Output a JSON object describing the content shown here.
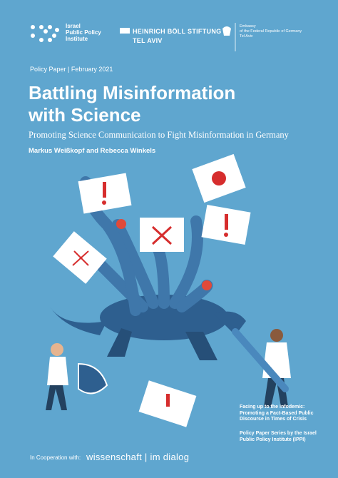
{
  "logos": {
    "ippi": [
      "Israel",
      "Public Policy",
      "Institute"
    ],
    "boell": {
      "name": "HEINRICH BÖLL STIFTUNG",
      "office": "TEL AVIV"
    },
    "embassy": [
      "Embassy",
      "of the Federal Republic of Germany",
      "Tel Aviv"
    ]
  },
  "header": {
    "kicker": "Policy Paper | February 2021",
    "title": [
      "Battling Misinformation",
      "with Science"
    ],
    "subtitle": "Promoting Science Communication to Fight Misinformation in Germany",
    "authors": "Markus Weißkopf and Rebecca Winkels"
  },
  "side_notes": {
    "series_title": [
      "Facing up to the Infodemic:",
      "Promoting a Fact-Based Public",
      "Discourse in Times of Crisis"
    ],
    "series_by": [
      "Policy Paper Series by the Israel",
      "Public Policy Institute (IPPI)"
    ]
  },
  "footer": {
    "cooperation": "In Cooperation with:",
    "partner": "wissenschaft | im dialog"
  }
}
